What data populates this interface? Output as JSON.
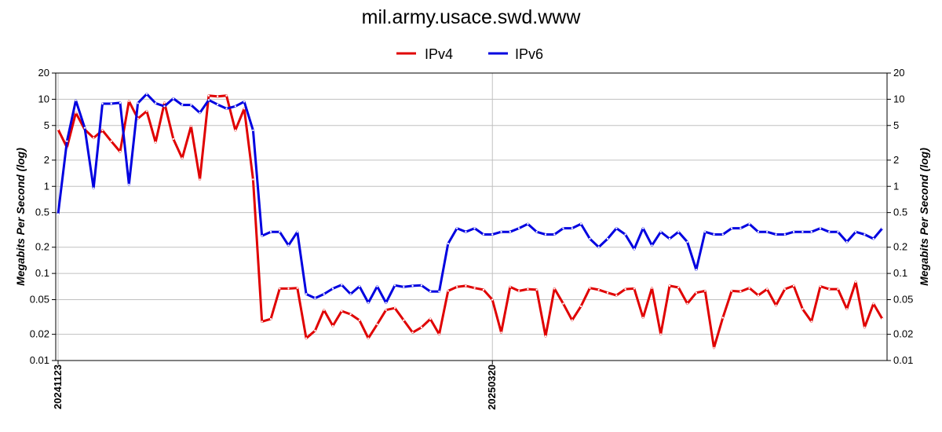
{
  "chart_data": {
    "type": "line",
    "title": "mil.army.usace.swd.www",
    "ylabel": "Megabits Per Second (log)",
    "y_scale": "log",
    "ylim": [
      0.01,
      20
    ],
    "y_ticks": [
      20,
      10,
      5,
      2,
      1,
      0.5,
      0.2,
      0.1,
      0.05,
      0.02,
      0.01
    ],
    "y_tick_labels": [
      "20",
      "10",
      "5",
      "2",
      "1",
      "0.5",
      "0.2",
      "0.1",
      "0.05",
      "0.02",
      "0.01"
    ],
    "x_tick_labels": [
      "20241123",
      "20250320"
    ],
    "x_tick_positions": [
      0,
      49
    ],
    "grid": true,
    "legend_position": "top-center",
    "series": [
      {
        "name": "IPv4",
        "color": "#e00000",
        "values": [
          4.5,
          2.8,
          7.0,
          4.5,
          3.6,
          4.4,
          3.3,
          2.5,
          9.5,
          6.0,
          7.3,
          3.2,
          9.1,
          3.5,
          2.1,
          4.9,
          1.2,
          11.0,
          10.8,
          11.0,
          4.4,
          7.8,
          1.2,
          0.028,
          0.03,
          0.067,
          0.067,
          0.068,
          0.018,
          0.022,
          0.038,
          0.025,
          0.037,
          0.034,
          0.029,
          0.018,
          0.026,
          0.038,
          0.04,
          0.029,
          0.021,
          0.024,
          0.03,
          0.02,
          0.063,
          0.07,
          0.072,
          0.068,
          0.065,
          0.05,
          0.021,
          0.07,
          0.063,
          0.066,
          0.065,
          0.019,
          0.067,
          0.045,
          0.029,
          0.042,
          0.068,
          0.065,
          0.06,
          0.056,
          0.066,
          0.067,
          0.031,
          0.068,
          0.02,
          0.072,
          0.069,
          0.045,
          0.06,
          0.063,
          0.014,
          0.031,
          0.063,
          0.062,
          0.068,
          0.056,
          0.066,
          0.043,
          0.066,
          0.072,
          0.039,
          0.028,
          0.071,
          0.066,
          0.066,
          0.039,
          0.08,
          0.024,
          0.045,
          0.03
        ]
      },
      {
        "name": "IPv6",
        "color": "#0000e0",
        "values": [
          0.48,
          3.3,
          9.7,
          4.7,
          0.95,
          8.9,
          8.9,
          9.1,
          1.05,
          9.0,
          11.5,
          9.0,
          8.3,
          10.2,
          8.6,
          8.6,
          7.0,
          9.8,
          8.7,
          7.8,
          8.3,
          9.4,
          4.4,
          0.27,
          0.3,
          0.3,
          0.21,
          0.3,
          0.058,
          0.052,
          0.058,
          0.067,
          0.074,
          0.058,
          0.071,
          0.046,
          0.071,
          0.046,
          0.073,
          0.07,
          0.072,
          0.073,
          0.062,
          0.062,
          0.22,
          0.33,
          0.3,
          0.33,
          0.28,
          0.28,
          0.3,
          0.3,
          0.33,
          0.37,
          0.3,
          0.28,
          0.28,
          0.33,
          0.33,
          0.37,
          0.25,
          0.2,
          0.25,
          0.33,
          0.28,
          0.19,
          0.33,
          0.21,
          0.3,
          0.25,
          0.3,
          0.23,
          0.11,
          0.3,
          0.28,
          0.28,
          0.33,
          0.33,
          0.37,
          0.3,
          0.3,
          0.28,
          0.28,
          0.3,
          0.3,
          0.3,
          0.33,
          0.3,
          0.3,
          0.23,
          0.3,
          0.28,
          0.25,
          0.33
        ]
      }
    ]
  }
}
